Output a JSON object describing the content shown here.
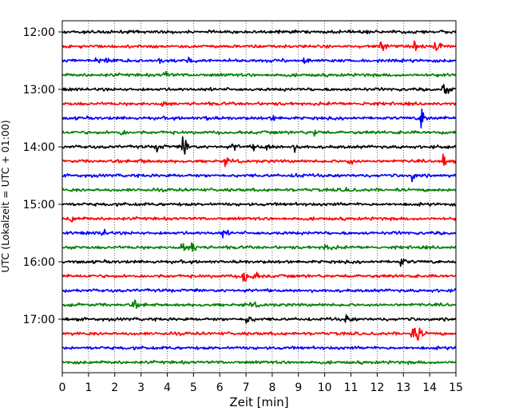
{
  "chart_data": {
    "type": "line",
    "xlabel": "Zeit  [min]",
    "ylabel": "UTC (Lokalzeit = UTC + 01:00)",
    "xlim": [
      0,
      15
    ],
    "x_ticks": [
      0,
      1,
      2,
      3,
      4,
      5,
      6,
      7,
      8,
      9,
      10,
      11,
      12,
      13,
      14,
      15
    ],
    "y_ticks": [
      "12:00",
      "13:00",
      "14:00",
      "15:00",
      "16:00",
      "17:00"
    ],
    "grid": {
      "x": "dotted",
      "y": "off"
    },
    "trace_interval_min": 15,
    "trace_colors": [
      "#000000",
      "#ff0000",
      "#0000ff",
      "#008000"
    ],
    "traces": [
      {
        "start": "12:00",
        "color": "#000000",
        "events": []
      },
      {
        "start": "12:15",
        "color": "#ff0000",
        "events": [
          [
            12.15,
            3.5
          ],
          [
            13.4,
            1.5
          ],
          [
            14.2,
            3.5
          ]
        ]
      },
      {
        "start": "12:30",
        "color": "#0000ff",
        "events": [
          [
            1.3,
            3.2
          ],
          [
            1.7,
            2.2
          ],
          [
            3.7,
            1.2
          ],
          [
            4.8,
            1.2
          ],
          [
            9.2,
            1.5
          ]
        ]
      },
      {
        "start": "12:45",
        "color": "#008000",
        "events": [
          [
            3.9,
            2.0
          ]
        ]
      },
      {
        "start": "13:00",
        "color": "#000000",
        "events": [
          [
            14.5,
            3.5
          ]
        ]
      },
      {
        "start": "13:15",
        "color": "#ff0000",
        "events": [
          [
            3.8,
            1.2
          ],
          [
            11.5,
            1.2
          ]
        ]
      },
      {
        "start": "13:30",
        "color": "#0000ff",
        "events": [
          [
            13.65,
            5.5
          ],
          [
            8.0,
            1.2
          ],
          [
            5.5,
            1.2
          ]
        ]
      },
      {
        "start": "13:45",
        "color": "#008000",
        "events": [
          [
            2.2,
            1.5
          ],
          [
            9.6,
            1.2
          ]
        ]
      },
      {
        "start": "14:00",
        "color": "#000000",
        "events": [
          [
            4.6,
            6.5
          ],
          [
            3.6,
            2.2
          ],
          [
            6.5,
            1.8
          ],
          [
            7.3,
            1.5
          ],
          [
            7.8,
            1.5
          ],
          [
            8.8,
            1.5
          ]
        ]
      },
      {
        "start": "14:15",
        "color": "#ff0000",
        "events": [
          [
            10.9,
            2.0
          ],
          [
            14.5,
            2.5
          ],
          [
            3.0,
            1.2
          ],
          [
            6.2,
            1.2
          ]
        ]
      },
      {
        "start": "14:30",
        "color": "#0000ff",
        "events": [
          [
            13.3,
            2.2
          ],
          [
            8.9,
            1.2
          ]
        ]
      },
      {
        "start": "14:45",
        "color": "#008000",
        "events": [
          [
            10.8,
            1.2
          ]
        ]
      },
      {
        "start": "15:00",
        "color": "#000000",
        "events": []
      },
      {
        "start": "15:15",
        "color": "#ff0000",
        "events": [
          [
            0.3,
            1.5
          ]
        ]
      },
      {
        "start": "15:30",
        "color": "#0000ff",
        "events": [
          [
            1.5,
            2.0
          ],
          [
            6.1,
            1.5
          ]
        ]
      },
      {
        "start": "15:45",
        "color": "#008000",
        "events": [
          [
            4.55,
            2.5
          ],
          [
            4.95,
            2.8
          ],
          [
            10.0,
            1.8
          ]
        ]
      },
      {
        "start": "16:00",
        "color": "#000000",
        "events": [
          [
            12.9,
            2.0
          ]
        ]
      },
      {
        "start": "16:15",
        "color": "#ff0000",
        "events": [
          [
            6.9,
            5.0
          ],
          [
            7.3,
            1.8
          ]
        ]
      },
      {
        "start": "16:30",
        "color": "#0000ff",
        "events": []
      },
      {
        "start": "16:45",
        "color": "#008000",
        "events": [
          [
            2.7,
            1.8
          ],
          [
            7.2,
            1.5
          ]
        ]
      },
      {
        "start": "17:00",
        "color": "#000000",
        "events": [
          [
            7.0,
            2.5
          ],
          [
            10.8,
            1.8
          ]
        ]
      },
      {
        "start": "17:15",
        "color": "#ff0000",
        "events": [
          [
            13.3,
            3.5
          ],
          [
            13.55,
            2.8
          ]
        ]
      },
      {
        "start": "17:30",
        "color": "#0000ff",
        "events": []
      },
      {
        "start": "17:45",
        "color": "#008000",
        "events": []
      }
    ]
  }
}
